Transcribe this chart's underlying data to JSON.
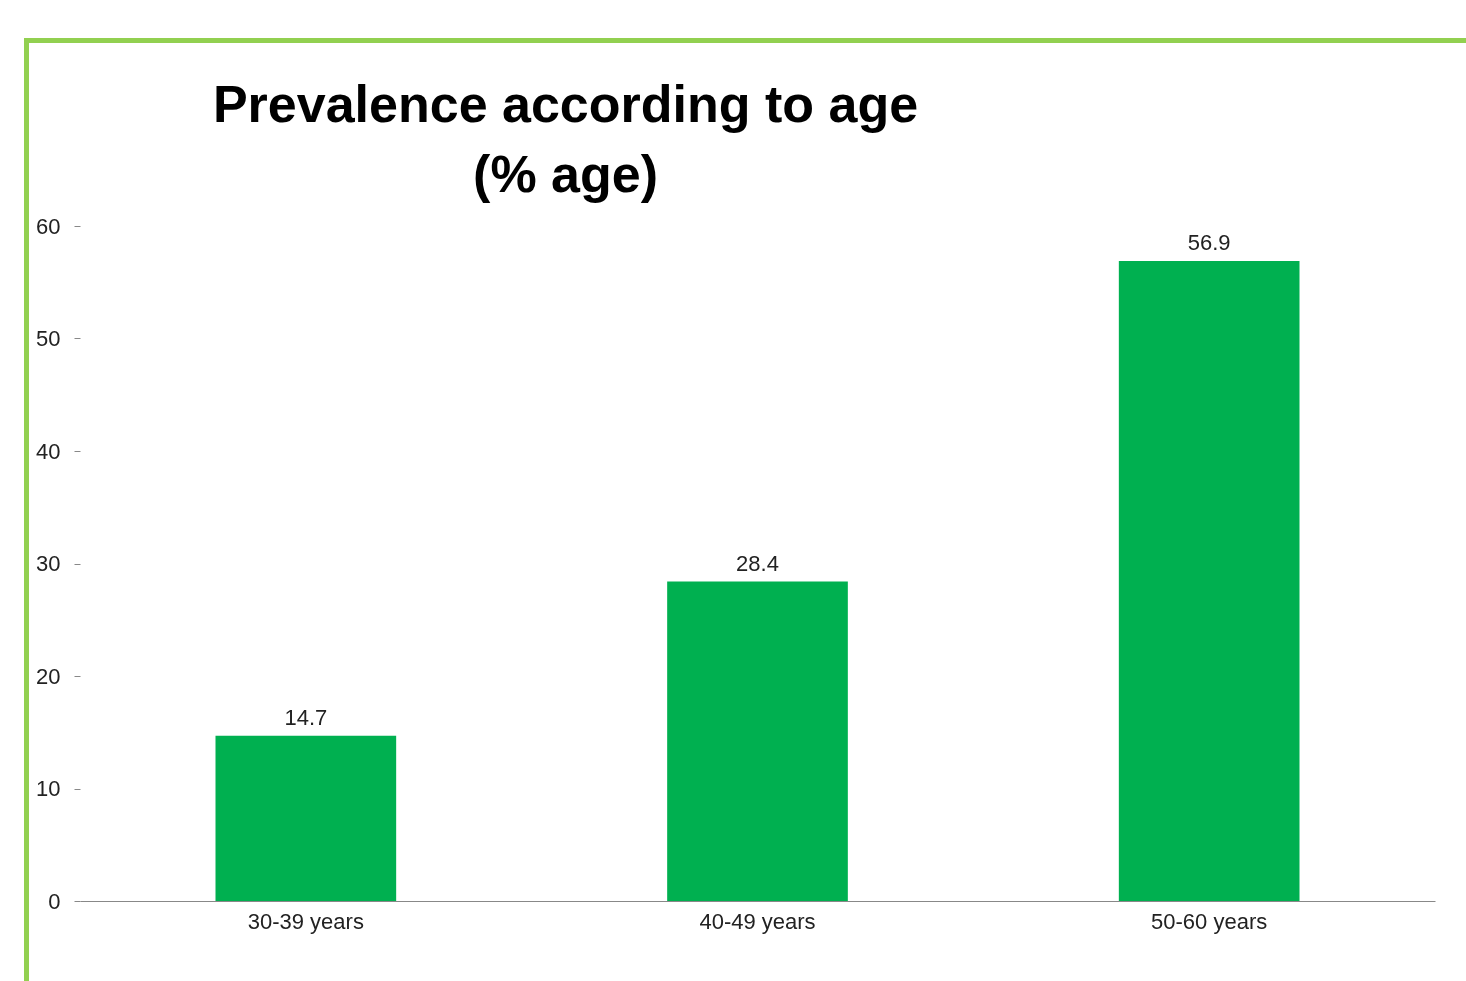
{
  "chart_data": {
    "type": "bar",
    "title": "Prevalence according to age\n(% age)",
    "categories": [
      "30-39 years",
      "40-49 years",
      "50-60 years"
    ],
    "values": [
      14.7,
      28.4,
      56.9
    ],
    "color": "#00b050",
    "ylim": [
      0,
      60
    ],
    "yticks": [
      0,
      10,
      20,
      30,
      40,
      50,
      60
    ],
    "grid": false,
    "data_labels": true
  }
}
